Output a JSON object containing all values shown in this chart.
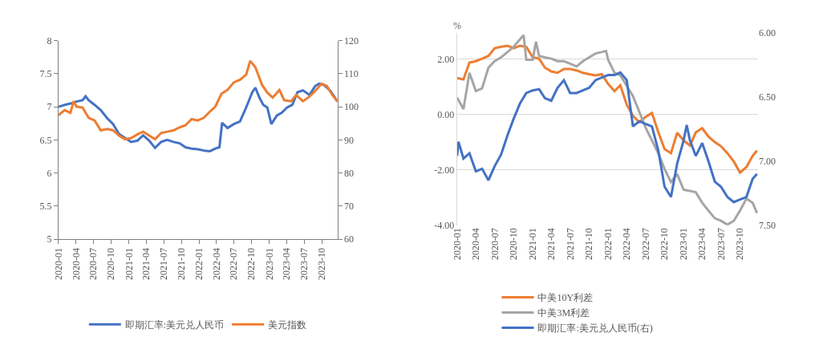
{
  "chart_data": [
    {
      "type": "line",
      "legend": "bottom",
      "grid": false,
      "xlim": [
        "2020-01-01",
        "2023-12-22"
      ],
      "xticks": [
        "2020-01",
        "2020-04",
        "2020-07",
        "2020-10",
        "2021-01",
        "2021-04",
        "2021-07",
        "2021-10",
        "2022-01",
        "2022-04",
        "2022-07",
        "2022-10",
        "2023-01",
        "2023-04",
        "2023-07",
        "2023-10"
      ],
      "ylim": [
        5,
        8
      ],
      "yticks": [
        5,
        5.5,
        6,
        6.5,
        7,
        7.5,
        8
      ],
      "y2lim": [
        60,
        120
      ],
      "y2ticks": [
        60,
        70,
        80,
        90,
        100,
        110,
        120
      ],
      "series": [
        {
          "name": "即期汇率:美元兑人民币",
          "color": "#4472c4",
          "x": [
            "2020-01-01",
            "2020-02-02",
            "2020-03-03",
            "2020-04-03",
            "2020-05-05",
            "2020-05-21",
            "2020-06-06",
            "2020-07-07",
            "2020-08-08",
            "2020-09-10",
            "2020-10-11",
            "2020-11-11",
            "2020-12-12",
            "2021-01-13",
            "2021-02-15",
            "2021-03-16",
            "2021-04-17",
            "2021-05-17",
            "2021-06-18",
            "2021-07-19",
            "2021-08-21",
            "2021-09-22",
            "2021-10-22",
            "2021-11-23",
            "2021-12-25",
            "2022-01-26",
            "2022-02-27",
            "2022-03-27",
            "2022-04-17",
            "2022-05-01",
            "2022-05-29",
            "2022-07-01",
            "2022-08-02",
            "2022-09-03",
            "2022-10-05",
            "2022-10-21",
            "2022-11-11",
            "2022-12-01",
            "2022-12-22",
            "2023-01-12",
            "2023-02-10",
            "2023-03-07",
            "2023-04-04",
            "2023-05-01",
            "2023-05-28",
            "2023-06-25",
            "2023-07-30",
            "2023-08-27",
            "2023-09-17",
            "2023-10-13",
            "2023-11-16",
            "2023-12-22"
          ],
          "values": [
            7.0,
            7.03,
            7.05,
            7.08,
            7.1,
            7.16,
            7.1,
            7.03,
            6.95,
            6.83,
            6.74,
            6.59,
            6.53,
            6.47,
            6.49,
            6.57,
            6.49,
            6.38,
            6.47,
            6.5,
            6.47,
            6.45,
            6.39,
            6.37,
            6.36,
            6.34,
            6.33,
            6.37,
            6.39,
            6.76,
            6.68,
            6.74,
            6.78,
            6.99,
            7.22,
            7.29,
            7.14,
            7.03,
            6.99,
            6.74,
            6.87,
            6.91,
            6.99,
            7.03,
            7.22,
            7.25,
            7.18,
            7.31,
            7.35,
            7.33,
            7.24,
            7.08
          ]
        },
        {
          "name": "美元指数",
          "color": "#ed7d31",
          "axis": "y2",
          "x": [
            "2020-01-01",
            "2020-02-02",
            "2020-03-03",
            "2020-03-20",
            "2020-04-03",
            "2020-05-05",
            "2020-06-06",
            "2020-07-07",
            "2020-08-08",
            "2020-09-10",
            "2020-10-11",
            "2020-11-11",
            "2020-12-12",
            "2021-01-13",
            "2021-02-15",
            "2021-03-16",
            "2021-04-17",
            "2021-05-17",
            "2021-06-18",
            "2021-07-19",
            "2021-08-21",
            "2021-09-22",
            "2021-10-22",
            "2021-11-23",
            "2021-12-25",
            "2022-01-26",
            "2022-02-27",
            "2022-03-27",
            "2022-04-28",
            "2022-05-29",
            "2022-07-01",
            "2022-08-02",
            "2022-09-03",
            "2022-09-24",
            "2022-10-21",
            "2022-11-25",
            "2022-12-22",
            "2023-01-19",
            "2023-02-23",
            "2023-03-20",
            "2023-04-24",
            "2023-05-22",
            "2023-06-25",
            "2023-07-23",
            "2023-08-27",
            "2023-10-01",
            "2023-10-28",
            "2023-11-25",
            "2023-12-22"
          ],
          "values": [
            97.5,
            99.0,
            98.2,
            101.7,
            100.1,
            99.8,
            96.7,
            95.9,
            92.9,
            93.3,
            92.9,
            91.3,
            90.2,
            90.6,
            91.7,
            92.5,
            91.3,
            90.2,
            92.1,
            92.5,
            92.9,
            93.8,
            94.4,
            96.3,
            95.9,
            96.7,
            98.6,
            100.1,
            104.0,
            105.1,
            107.4,
            108.2,
            109.7,
            113.9,
            112.0,
            106.6,
            104.3,
            102.8,
            105.1,
            102.0,
            101.7,
            103.6,
            101.7,
            102.8,
            104.7,
            107.0,
            106.3,
            103.6,
            101.7
          ]
        }
      ]
    },
    {
      "type": "line",
      "legend": "bottom",
      "grid": "y",
      "ylabel": "%",
      "xlim": [
        "2020-01-01",
        "2023-12-27"
      ],
      "xticks": [
        "2020-01",
        "2020-04",
        "2020-07",
        "2020-10",
        "2021-01",
        "2021-04",
        "2021-07",
        "2021-10",
        "2022-01",
        "2022-04",
        "2022-07",
        "2022-10",
        "2023-01",
        "2023-04",
        "2023-07",
        "2023-10"
      ],
      "ylim": [
        -4,
        2.95
      ],
      "yticks": [
        {
          "value": -4,
          "label": "-4.00"
        },
        {
          "value": -2,
          "label": "-2.00"
        },
        {
          "value": 0,
          "label": "0.00"
        },
        {
          "value": 2,
          "label": "2.00"
        }
      ],
      "y2lim": [
        7.5,
        6.0
      ],
      "y2ticks": [
        {
          "value": 6,
          "label": "6.00"
        },
        {
          "value": 6.5,
          "label": "6.50"
        },
        {
          "value": 7,
          "label": "7.00"
        },
        {
          "value": 7.5,
          "label": "7.50"
        }
      ],
      "series": [
        {
          "name": "中美10Y利差",
          "color": "#ed7d31",
          "x": [
            "2020-01-01",
            "2020-02-01",
            "2020-03-01",
            "2020-04-01",
            "2020-05-01",
            "2020-06-01",
            "2020-07-01",
            "2020-08-01",
            "2020-09-01",
            "2020-10-01",
            "2020-11-01",
            "2020-12-01",
            "2021-01-01",
            "2021-02-01",
            "2021-03-01",
            "2021-04-01",
            "2021-05-01",
            "2021-06-01",
            "2021-07-01",
            "2021-08-01",
            "2021-09-01",
            "2021-10-01",
            "2021-11-01",
            "2021-12-01",
            "2022-01-01",
            "2022-02-01",
            "2022-03-01",
            "2022-04-01",
            "2022-05-01",
            "2022-06-01",
            "2022-07-01",
            "2022-08-01",
            "2022-09-01",
            "2022-10-01",
            "2022-11-01",
            "2022-12-01",
            "2023-01-01",
            "2023-02-01",
            "2023-03-01",
            "2023-04-01",
            "2023-05-01",
            "2023-06-01",
            "2023-07-01",
            "2023-08-01",
            "2023-09-01",
            "2023-10-01",
            "2023-11-01",
            "2023-12-01",
            "2023-12-22"
          ],
          "values": [
            1.31,
            1.26,
            1.87,
            1.92,
            2.01,
            2.11,
            2.39,
            2.44,
            2.48,
            2.39,
            2.48,
            2.44,
            2.06,
            2.01,
            1.69,
            1.55,
            1.5,
            1.64,
            1.64,
            1.59,
            1.5,
            1.45,
            1.41,
            1.45,
            1.1,
            0.84,
            1.05,
            0.35,
            -0.05,
            -0.28,
            -0.09,
            0.05,
            -0.65,
            -1.25,
            -1.4,
            -0.66,
            -0.94,
            -1.12,
            -0.65,
            -0.5,
            -0.8,
            -1.0,
            -1.15,
            -1.4,
            -1.7,
            -2.1,
            -1.9,
            -1.5,
            -1.31
          ]
        },
        {
          "name": "中美3M利差",
          "color": "#a5a5a5",
          "x": [
            "2020-01-01",
            "2020-02-01",
            "2020-03-01",
            "2020-04-01",
            "2020-05-01",
            "2020-06-01",
            "2020-07-01",
            "2020-08-01",
            "2020-09-01",
            "2020-10-01",
            "2020-11-18",
            "2020-12-01",
            "2021-01-01",
            "2021-01-17",
            "2021-02-01",
            "2021-03-01",
            "2021-04-01",
            "2021-05-01",
            "2021-06-01",
            "2021-07-01",
            "2021-08-01",
            "2021-09-01",
            "2021-10-01",
            "2021-11-01",
            "2021-12-01",
            "2021-12-22",
            "2022-01-01",
            "2022-02-01",
            "2022-03-01",
            "2022-04-01",
            "2022-05-01",
            "2022-06-01",
            "2022-07-01",
            "2022-08-01",
            "2022-09-01",
            "2022-10-01",
            "2022-11-01",
            "2022-12-01",
            "2023-01-01",
            "2023-02-01",
            "2023-03-01",
            "2023-04-01",
            "2023-05-01",
            "2023-06-01",
            "2023-07-01",
            "2023-08-01",
            "2023-09-01",
            "2023-10-01",
            "2023-11-01",
            "2023-12-01",
            "2023-12-22"
          ],
          "values": [
            0.61,
            0.19,
            1.5,
            0.84,
            0.94,
            1.69,
            1.92,
            2.06,
            2.25,
            2.44,
            2.86,
            1.97,
            1.97,
            2.62,
            2.11,
            2.06,
            2.01,
            1.92,
            1.92,
            1.83,
            1.73,
            1.92,
            2.06,
            2.2,
            2.25,
            2.29,
            1.97,
            1.5,
            1.41,
            1.03,
            0.66,
            0.09,
            -0.47,
            -0.94,
            -1.41,
            -1.97,
            -2.44,
            -2.15,
            -2.72,
            -2.76,
            -2.81,
            -3.19,
            -3.47,
            -3.75,
            -3.84,
            -3.98,
            -3.84,
            -3.47,
            -3.04,
            -3.19,
            -3.56
          ]
        },
        {
          "name": "即期汇率:美元兑人民币(右)",
          "color": "#4472c4",
          "axis": "y2",
          "x": [
            "2020-01-01",
            "2020-01-08",
            "2020-02-01",
            "2020-03-01",
            "2020-04-01",
            "2020-05-01",
            "2020-06-01",
            "2020-07-01",
            "2020-08-01",
            "2020-09-01",
            "2020-10-01",
            "2020-11-01",
            "2020-12-01",
            "2021-01-01",
            "2021-02-01",
            "2021-03-01",
            "2021-04-01",
            "2021-05-01",
            "2021-06-01",
            "2021-07-01",
            "2021-08-01",
            "2021-09-01",
            "2021-10-01",
            "2021-11-01",
            "2021-12-01",
            "2022-01-01",
            "2022-02-01",
            "2022-03-01",
            "2022-04-01",
            "2022-05-01",
            "2022-06-01",
            "2022-07-01",
            "2022-08-01",
            "2022-09-01",
            "2022-10-01",
            "2022-11-01",
            "2022-12-01",
            "2023-01-01",
            "2023-01-16",
            "2023-02-01",
            "2023-03-01",
            "2023-04-01",
            "2023-05-01",
            "2023-06-01",
            "2023-07-01",
            "2023-08-01",
            "2023-09-01",
            "2023-10-01",
            "2023-11-01",
            "2023-12-01",
            "2023-12-22"
          ],
          "values": [
            6.96,
            6.85,
            6.98,
            6.94,
            7.08,
            7.06,
            7.15,
            7.04,
            6.95,
            6.8,
            6.67,
            6.55,
            6.47,
            6.45,
            6.44,
            6.51,
            6.53,
            6.43,
            6.37,
            6.47,
            6.47,
            6.45,
            6.43,
            6.37,
            6.35,
            6.33,
            6.33,
            6.31,
            6.37,
            6.73,
            6.69,
            6.71,
            6.73,
            6.92,
            7.2,
            7.28,
            7.02,
            6.84,
            6.72,
            6.84,
            6.96,
            6.86,
            7.0,
            7.16,
            7.2,
            7.28,
            7.32,
            7.3,
            7.28,
            7.14,
            7.1
          ]
        }
      ]
    }
  ]
}
